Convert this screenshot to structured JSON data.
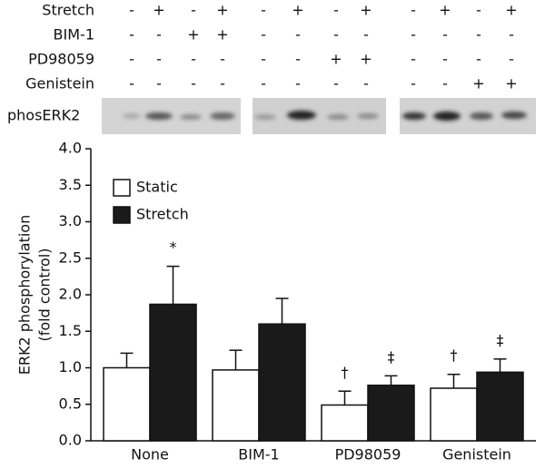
{
  "blot": {
    "rows": [
      {
        "label": "Stretch",
        "signs": [
          "-",
          "+",
          "-",
          "+",
          "-",
          "+",
          "-",
          "+",
          "-",
          "+",
          "-",
          "+"
        ]
      },
      {
        "label": "BIM-1",
        "signs": [
          "-",
          "-",
          "+",
          "+",
          "-",
          "-",
          "-",
          "-",
          "-",
          "-",
          "-",
          "-"
        ]
      },
      {
        "label": "PD98059",
        "signs": [
          "-",
          "-",
          "-",
          "-",
          "-",
          "-",
          "+",
          "+",
          "-",
          "-",
          "-",
          "-"
        ]
      },
      {
        "label": "Genistein",
        "signs": [
          "-",
          "-",
          "-",
          "-",
          "-",
          "-",
          "-",
          "-",
          "-",
          "-",
          "+",
          "+"
        ]
      }
    ],
    "label": "phosERK2"
  },
  "chart_data": {
    "type": "bar",
    "ylabel": [
      "ERK2 phosphorylation",
      "(fold control)"
    ],
    "categories": [
      "None",
      "BIM-1",
      "PD98059",
      "Genistein"
    ],
    "series": [
      {
        "name": "Static",
        "color": "#ffffff",
        "values": [
          1.0,
          0.97,
          0.49,
          0.72
        ],
        "errors": [
          0.2,
          0.27,
          0.19,
          0.19
        ],
        "annotations": [
          null,
          null,
          "†",
          "†"
        ]
      },
      {
        "name": "Stretch",
        "color": "#1a1a1a",
        "values": [
          1.87,
          1.6,
          0.76,
          0.94
        ],
        "errors": [
          0.52,
          0.35,
          0.13,
          0.18
        ],
        "annotations": [
          "*",
          null,
          "‡",
          "‡"
        ]
      }
    ],
    "ylim": [
      0,
      4
    ],
    "yticks": [
      {
        "value": 0,
        "label": "0.0"
      },
      {
        "value": 0.5,
        "label": "0.5"
      },
      {
        "value": 1,
        "label": "1.0"
      },
      {
        "value": 1.5,
        "label": "1.5"
      },
      {
        "value": 2,
        "label": "2.0"
      },
      {
        "value": 2.5,
        "label": "2.5"
      },
      {
        "value": 3,
        "label": "3.0"
      },
      {
        "value": 3.5,
        "label": "3.5"
      },
      {
        "value": 4,
        "label": "4.0"
      }
    ],
    "legend": "top-left"
  }
}
